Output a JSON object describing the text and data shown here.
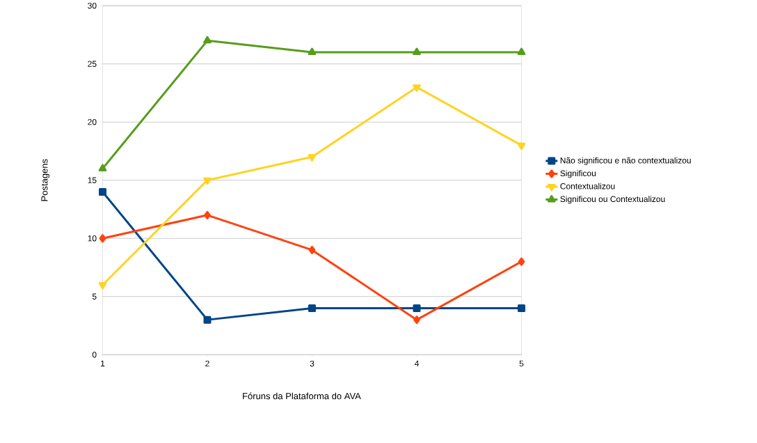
{
  "chart_data": {
    "type": "line",
    "xlabel": "Fóruns da Plataforma do AVA",
    "ylabel": "Postagens",
    "x": [
      1,
      2,
      3,
      4,
      5
    ],
    "xlim": [
      1,
      5
    ],
    "xticks": [
      1,
      2,
      3,
      4,
      5
    ],
    "ylim": [
      0,
      30
    ],
    "yticks": [
      0,
      5,
      10,
      15,
      20,
      25,
      30
    ],
    "grid": "y",
    "legend": "right",
    "line_style": "solid",
    "series": [
      {
        "name": "Não significou e não contextualizou",
        "color": "#004586",
        "marker": "square",
        "values": [
          14,
          3,
          4,
          4,
          4
        ]
      },
      {
        "name": "Significou",
        "color": "#ff420e",
        "marker": "diamond",
        "values": [
          10,
          12,
          9,
          3,
          8
        ]
      },
      {
        "name": "Contextualizou",
        "color": "#ffd320",
        "marker": "triangle-down",
        "values": [
          6,
          15,
          17,
          23,
          18
        ]
      },
      {
        "name": "Significou ou Contextualizou",
        "color": "#579d1c",
        "marker": "triangle",
        "values": [
          16,
          27,
          26,
          26,
          26
        ]
      }
    ]
  }
}
